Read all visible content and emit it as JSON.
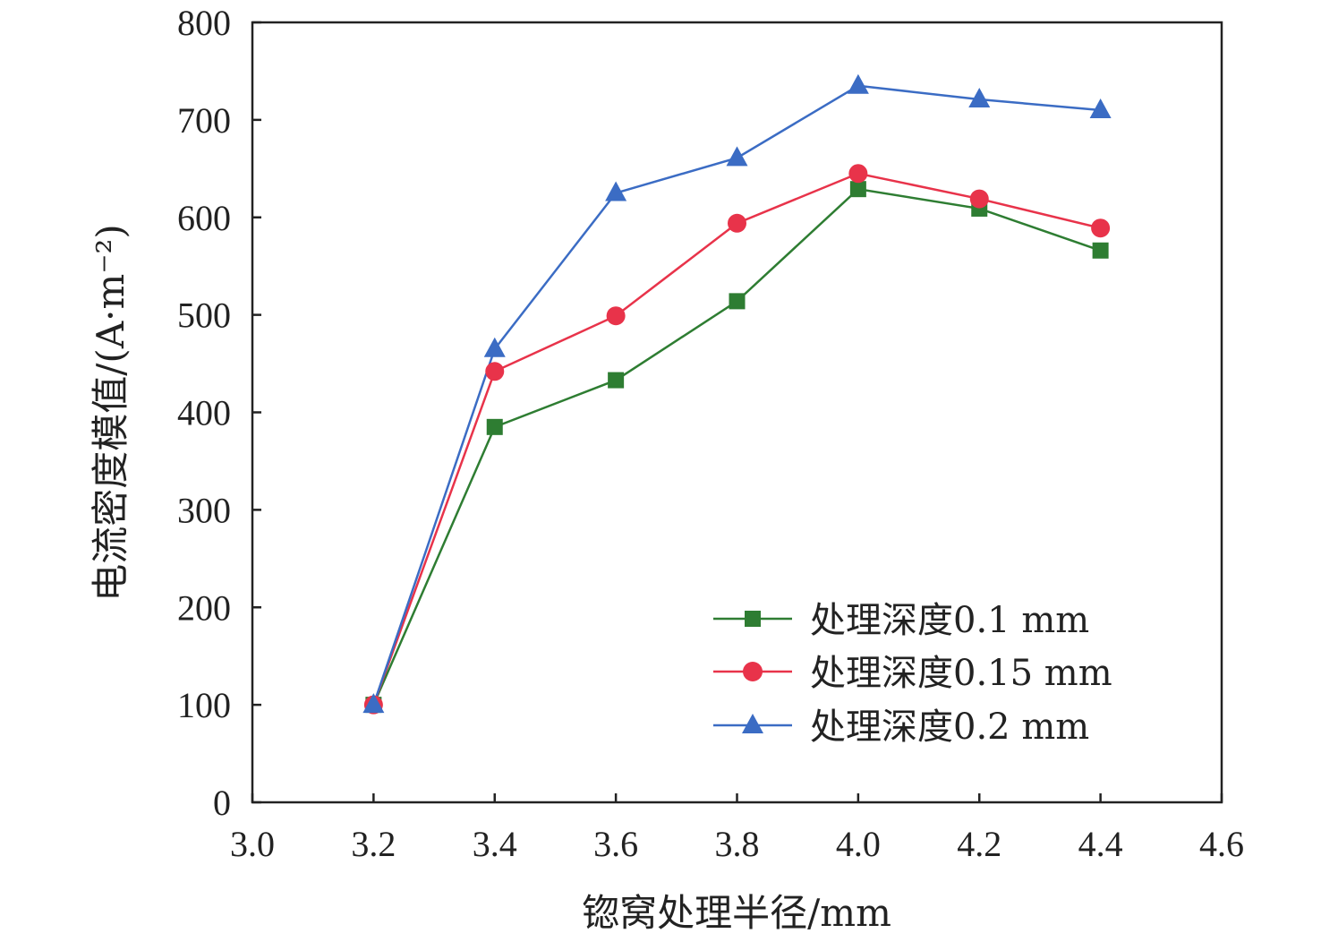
{
  "chart_data": {
    "type": "line",
    "title": "",
    "xlabel": "锪窝处理半径/mm",
    "ylabel": "电流密度模值/(A·m⁻²)",
    "xlim": [
      3.0,
      4.6
    ],
    "ylim": [
      0,
      800
    ],
    "xticks": [
      3.0,
      3.2,
      3.4,
      3.6,
      3.8,
      4.0,
      4.2,
      4.4,
      4.6
    ],
    "xtick_labels": [
      "3.0",
      "3.2",
      "3.4",
      "3.6",
      "3.8",
      "4.0",
      "4.2",
      "4.4",
      "4.6"
    ],
    "yticks": [
      0,
      100,
      200,
      300,
      400,
      500,
      600,
      700,
      800
    ],
    "ytick_labels": [
      "0",
      "100",
      "200",
      "300",
      "400",
      "500",
      "600",
      "700",
      "800"
    ],
    "grid": false,
    "legend_position": "bottom-right",
    "x": [
      3.2,
      3.4,
      3.6,
      3.8,
      4.0,
      4.2,
      4.4
    ],
    "series": [
      {
        "name": "处理深度0.1 mm",
        "marker": "square",
        "color": "#2e7d32",
        "values": [
          100,
          385,
          433,
          514,
          629,
          609,
          566
        ]
      },
      {
        "name": "处理深度0.15 mm",
        "marker": "circle",
        "color": "#e8334a",
        "values": [
          100,
          442,
          499,
          594,
          645,
          619,
          589
        ]
      },
      {
        "name": "处理深度0.2 mm",
        "marker": "triangle",
        "color": "#3b6cc4",
        "values": [
          100,
          465,
          625,
          661,
          735,
          721,
          710
        ]
      }
    ]
  }
}
